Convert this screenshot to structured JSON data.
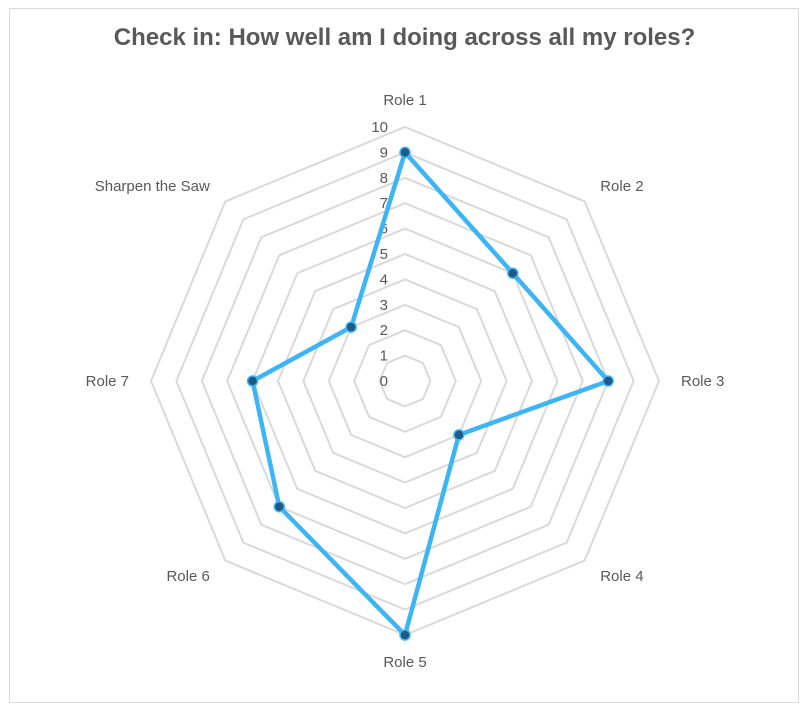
{
  "chart_data": {
    "type": "radar",
    "title": "Check in: How well am I doing across all my roles?",
    "categories": [
      "Role 1",
      "Role 2",
      "Role 3",
      "Role 4",
      "Role 5",
      "Role 6",
      "Role 7",
      "Sharpen the Saw"
    ],
    "series": [
      {
        "values": [
          9,
          6,
          8,
          3,
          10,
          7,
          6,
          3
        ],
        "color": "#3DB5F5",
        "marker_color": "#1F5A87"
      }
    ],
    "rlim": [
      0,
      10
    ],
    "ticks": [
      "0",
      "1",
      "2",
      "3",
      "4",
      "5",
      "6",
      "7",
      "8",
      "9",
      "10"
    ],
    "grid": true,
    "legend": "none",
    "grid_color": "#D9D9D9"
  }
}
